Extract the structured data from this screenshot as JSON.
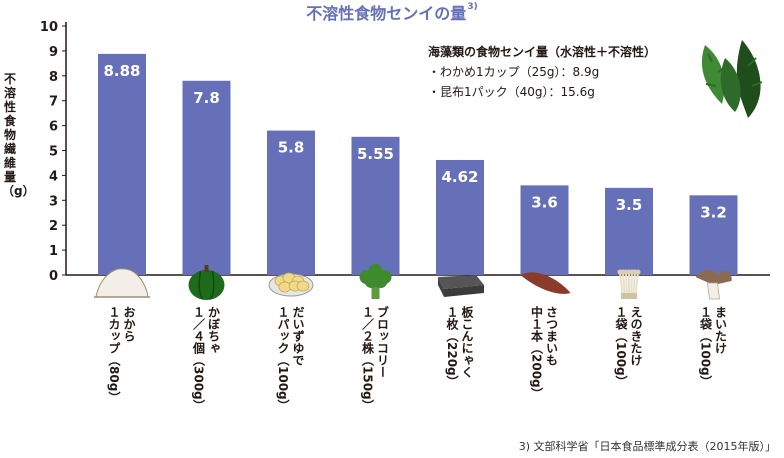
{
  "title": "不溶性食物センイの量",
  "title_ref": "3)",
  "ylabel": "不溶性食物繊維量（g）",
  "source": "3) 文部科学省「日本食品標準成分表（2015年版）」",
  "note": {
    "title": "海藻類の食物センイ量（水溶性＋不溶性）",
    "lines": [
      "・わかめ1カップ（25g）：8.9g",
      "・昆布1パック（40g）：15.6g"
    ]
  },
  "chart_data": {
    "type": "bar",
    "title": "不溶性食物センイの量",
    "ylabel": "不溶性食物繊維量（g）",
    "ylim": [
      0,
      10
    ],
    "yticks": [
      0,
      1,
      2,
      3,
      4,
      5,
      6,
      7,
      8,
      9,
      10
    ],
    "grid": false,
    "categories": [
      {
        "name": "おから",
        "amount": "１カップ（80g）"
      },
      {
        "name": "かぼちゃ",
        "amount": "１／４個（300g）"
      },
      {
        "name": "だいずゆで",
        "amount": "１パック（100g）"
      },
      {
        "name": "ブロッコリー",
        "amount": "１／２株（150g）"
      },
      {
        "name": "板こんにゃく",
        "amount": "１枚（220g）"
      },
      {
        "name": "さつまいも",
        "amount": "中１本（200g）"
      },
      {
        "name": "えのきたけ",
        "amount": "１袋（100g）"
      },
      {
        "name": "まいたけ",
        "amount": "１袋（100g）"
      }
    ],
    "values": [
      8.88,
      7.8,
      5.8,
      5.55,
      4.62,
      3.6,
      3.5,
      3.2
    ],
    "value_labels": [
      "8.88",
      "7.8",
      "5.8",
      "5.55",
      "4.62",
      "3.6",
      "3.5",
      "3.2"
    ],
    "bar_color": "#6670b8",
    "label_color": "#ffffff"
  },
  "icons": [
    "okara-icon",
    "pumpkin-icon",
    "soybean-icon",
    "broccoli-icon",
    "konnyaku-icon",
    "sweet-potato-icon",
    "enoki-icon",
    "maitake-icon"
  ],
  "colors": {
    "title": "#6670b8",
    "seaweed": "#2e6b2a"
  }
}
